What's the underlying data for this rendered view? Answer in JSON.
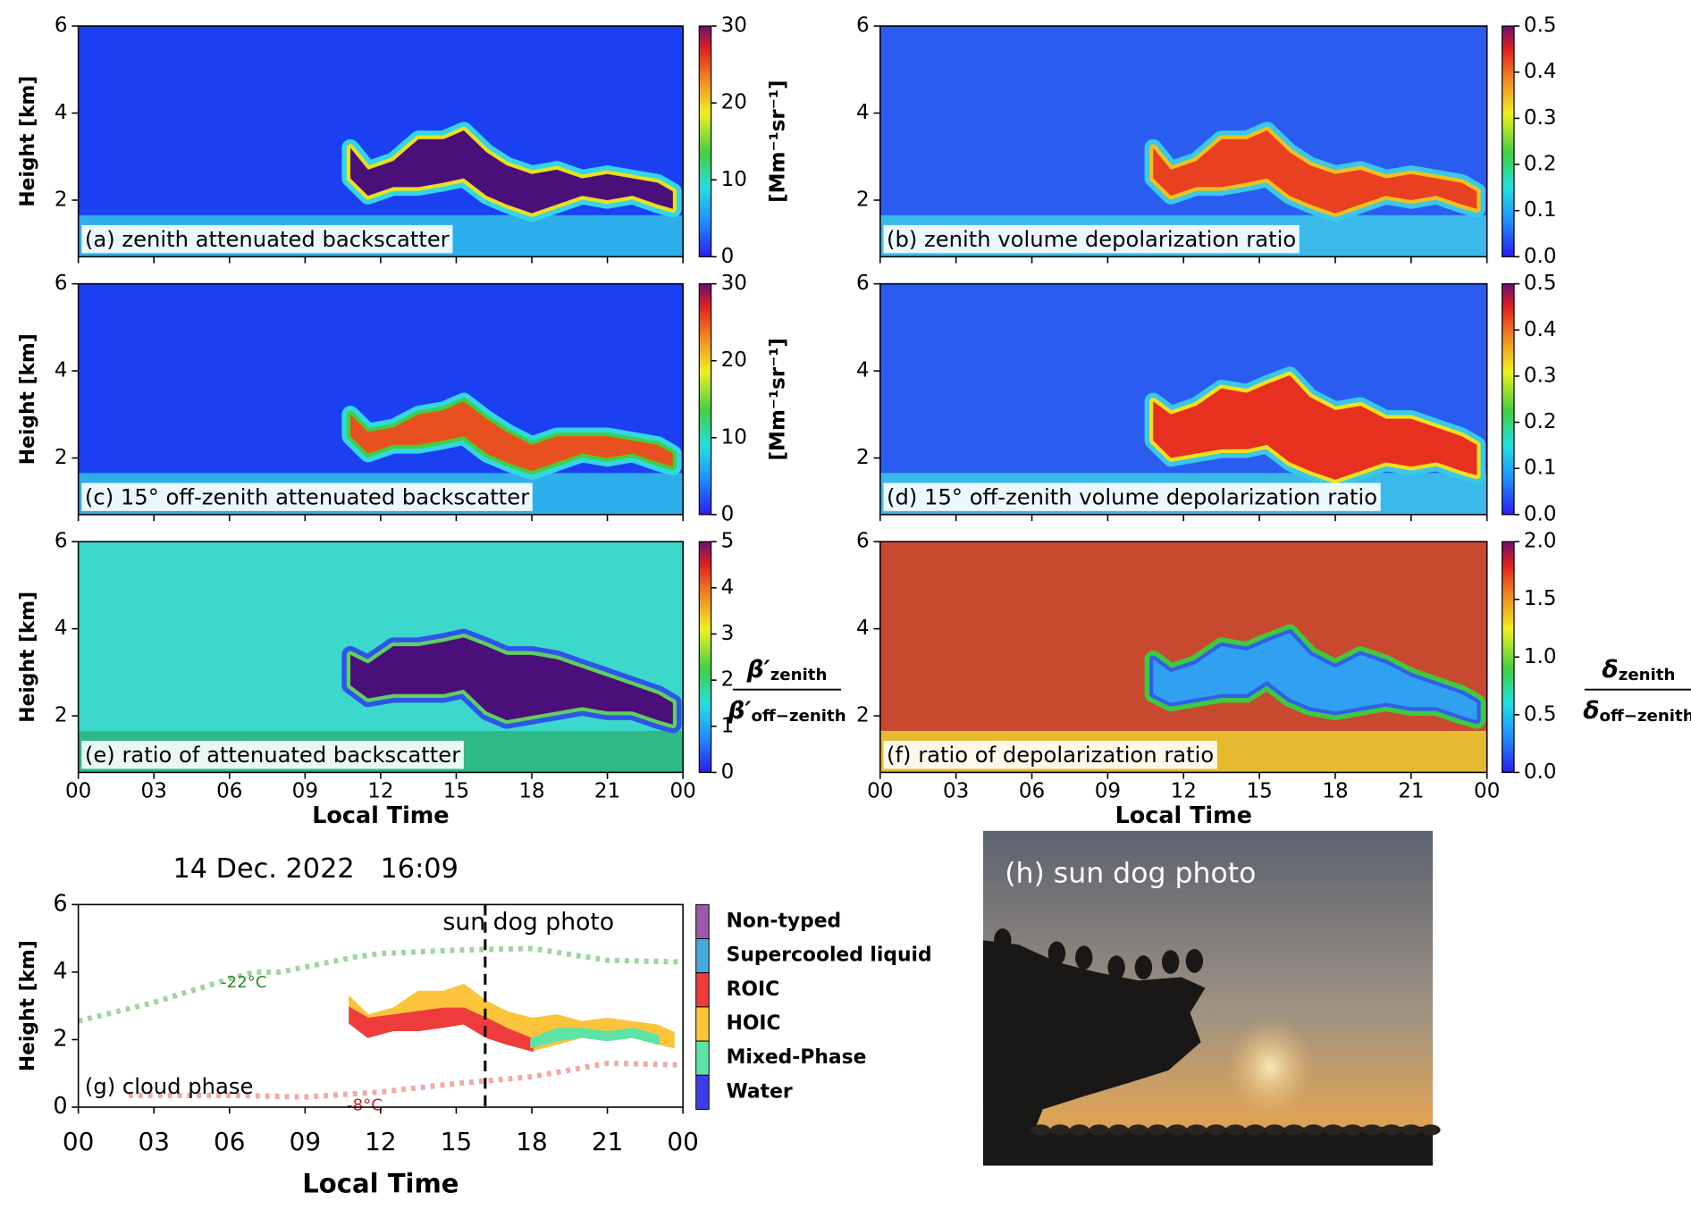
{
  "chart_data": [
    {
      "type": "heatmap",
      "label": "(a) zenith attenuated backscatter",
      "ylabel": "Height [km]",
      "xlim": [
        0,
        24
      ],
      "xticks": [
        0,
        3,
        6,
        9,
        12,
        15,
        18,
        21,
        24
      ],
      "ylim": [
        0.7,
        6
      ],
      "yticks": [
        2,
        4,
        6
      ],
      "background": "#1b40f2",
      "surface_color": "#36d4ea",
      "cloud_colors": [
        "#33d6e6",
        "#e8e020",
        "#4b0f7a"
      ],
      "cloud": {
        "x": [
          10.8,
          11.5,
          12.5,
          13.5,
          14.5,
          15.3,
          16.2,
          17,
          18,
          19,
          20,
          21,
          22,
          23,
          23.6
        ],
        "top": [
          3.2,
          2.7,
          2.9,
          3.4,
          3.4,
          3.6,
          3.1,
          2.8,
          2.6,
          2.7,
          2.5,
          2.6,
          2.5,
          2.4,
          2.2
        ],
        "base": [
          2.5,
          2.1,
          2.3,
          2.3,
          2.4,
          2.5,
          2.1,
          1.9,
          1.7,
          1.9,
          2.1,
          2.0,
          2.1,
          1.9,
          1.8
        ]
      },
      "colorbar": {
        "lim": [
          0,
          30
        ],
        "ticks": [
          0,
          10,
          20,
          30
        ],
        "label": "[Mm⁻¹sr⁻¹]"
      }
    },
    {
      "type": "heatmap",
      "label": "(b) zenith volume depolarization ratio",
      "xlim": [
        0,
        24
      ],
      "xticks": [
        0,
        3,
        6,
        9,
        12,
        15,
        18,
        21,
        24
      ],
      "ylim": [
        0.7,
        6
      ],
      "yticks": [
        2,
        4,
        6
      ],
      "background": "#2a5cf0",
      "surface_color": "#40d8e8",
      "cloud_colors": [
        "#39c8e8",
        "#f0c020",
        "#e84020"
      ],
      "cloud": {
        "x": [
          10.8,
          11.5,
          12.5,
          13.5,
          14.5,
          15.3,
          16.2,
          17,
          18,
          19,
          20,
          21,
          22,
          23,
          23.6
        ],
        "top": [
          3.2,
          2.7,
          2.9,
          3.4,
          3.4,
          3.6,
          3.1,
          2.8,
          2.6,
          2.7,
          2.5,
          2.6,
          2.5,
          2.4,
          2.2
        ],
        "base": [
          2.5,
          2.1,
          2.3,
          2.3,
          2.4,
          2.5,
          2.1,
          1.9,
          1.7,
          1.9,
          2.1,
          2.0,
          2.1,
          1.9,
          1.8
        ]
      },
      "colorbar": {
        "lim": [
          0,
          0.5
        ],
        "ticks": [
          {
            "value": 0,
            "label": "0.0"
          },
          0.1,
          0.2,
          0.3,
          0.4,
          0.5
        ]
      }
    },
    {
      "type": "heatmap",
      "label": "(c) 15° off-zenith attenuated backscatter",
      "ylabel": "Height [km]",
      "xlim": [
        0,
        24
      ],
      "xticks": [
        0,
        3,
        6,
        9,
        12,
        15,
        18,
        21,
        24
      ],
      "ylim": [
        0.7,
        6
      ],
      "yticks": [
        2,
        4,
        6
      ],
      "background": "#1b40f2",
      "surface_color": "#36d4ea",
      "cloud_colors": [
        "#33d6e6",
        "#40d040",
        "#e85020"
      ],
      "cloud": {
        "x": [
          10.8,
          11.5,
          12.5,
          13.5,
          14.5,
          15.3,
          16.2,
          17,
          18,
          19,
          20,
          21,
          22,
          23,
          23.6
        ],
        "top": [
          3.0,
          2.6,
          2.7,
          3.0,
          3.1,
          3.3,
          2.9,
          2.6,
          2.3,
          2.5,
          2.5,
          2.5,
          2.4,
          2.3,
          2.1
        ],
        "base": [
          2.5,
          2.1,
          2.3,
          2.3,
          2.4,
          2.5,
          2.1,
          1.9,
          1.7,
          1.9,
          2.1,
          2.0,
          2.1,
          1.9,
          1.8
        ]
      },
      "colorbar": {
        "lim": [
          0,
          30
        ],
        "ticks": [
          0,
          10,
          20,
          30
        ],
        "label": "[Mm⁻¹sr⁻¹]"
      }
    },
    {
      "type": "heatmap",
      "label": "(d) 15° off-zenith volume depolarization ratio",
      "xlim": [
        0,
        24
      ],
      "xticks": [
        0,
        3,
        6,
        9,
        12,
        15,
        18,
        21,
        24
      ],
      "ylim": [
        0.7,
        6
      ],
      "yticks": [
        2,
        4,
        6
      ],
      "background": "#2a5cf0",
      "surface_color": "#40d8e8",
      "cloud_colors": [
        "#39c8e8",
        "#f0e020",
        "#e83020"
      ],
      "cloud": {
        "x": [
          10.8,
          11.5,
          12.5,
          13.5,
          14.5,
          15.3,
          16.2,
          17,
          18,
          19,
          20,
          21,
          22,
          23,
          23.6
        ],
        "top": [
          3.3,
          3.0,
          3.2,
          3.6,
          3.5,
          3.7,
          3.9,
          3.4,
          3.1,
          3.2,
          2.9,
          2.9,
          2.7,
          2.5,
          2.3
        ],
        "base": [
          2.4,
          2.0,
          2.1,
          2.2,
          2.2,
          2.3,
          1.9,
          1.7,
          1.5,
          1.7,
          1.9,
          1.8,
          1.9,
          1.7,
          1.6
        ]
      },
      "colorbar": {
        "lim": [
          0,
          0.5
        ],
        "ticks": [
          {
            "value": 0,
            "label": "0.0"
          },
          0.1,
          0.2,
          0.3,
          0.4,
          0.5
        ]
      }
    },
    {
      "type": "heatmap",
      "label": "(e) ratio of attenuated backscatter",
      "ylabel": "Height [km]",
      "xlabel": "Local Time",
      "xlim": [
        0,
        24
      ],
      "xticks": [
        {
          "value": 0,
          "label": "00"
        },
        {
          "value": 3,
          "label": "03"
        },
        {
          "value": 6,
          "label": "06"
        },
        {
          "value": 9,
          "label": "09"
        },
        12,
        15,
        18,
        21,
        {
          "value": 24,
          "label": "00"
        }
      ],
      "ylim": [
        0.7,
        6
      ],
      "yticks": [
        2,
        4,
        6
      ],
      "background": "#3cd8cc",
      "surface_color": "#28b070",
      "cloud_colors": [
        "#2e54e8",
        "#60d060",
        "#4b0f7a"
      ],
      "cloud": {
        "x": [
          10.8,
          11.5,
          12.5,
          13.5,
          14.5,
          15.3,
          16.2,
          17,
          18,
          19,
          20,
          21,
          22,
          23,
          23.6
        ],
        "top": [
          3.4,
          3.2,
          3.6,
          3.6,
          3.7,
          3.8,
          3.6,
          3.4,
          3.4,
          3.3,
          3.1,
          2.9,
          2.7,
          2.5,
          2.3
        ],
        "base": [
          2.7,
          2.4,
          2.5,
          2.5,
          2.5,
          2.6,
          2.1,
          1.9,
          2.0,
          2.1,
          2.2,
          2.1,
          2.1,
          1.9,
          1.8
        ]
      },
      "colorbar": {
        "lim": [
          0,
          5
        ],
        "ticks": [
          0,
          1,
          2,
          3,
          4,
          5
        ],
        "label": {
          "numerator": {
            "symbol": "β′",
            "sub": "zenith"
          },
          "denominator": {
            "symbol": "β′",
            "sub": "off−zenith"
          }
        }
      }
    },
    {
      "type": "heatmap",
      "label": "(f) ratio of depolarization ratio",
      "xlabel": "Local Time",
      "xlim": [
        0,
        24
      ],
      "xticks": [
        {
          "value": 0,
          "label": "00"
        },
        {
          "value": 3,
          "label": "03"
        },
        {
          "value": 6,
          "label": "06"
        },
        {
          "value": 9,
          "label": "09"
        },
        12,
        15,
        18,
        21,
        {
          "value": 24,
          "label": "00"
        }
      ],
      "ylim": [
        0.7,
        6
      ],
      "yticks": [
        2,
        4,
        6
      ],
      "background": "#c84830",
      "surface_color": "#f0e030",
      "cloud_colors": [
        "#40c840",
        "#3060e8",
        "#30a0f0"
      ],
      "cloud": {
        "x": [
          10.8,
          11.5,
          12.5,
          13.5,
          14.5,
          15.3,
          16.2,
          17,
          18,
          19,
          20,
          21,
          22,
          23,
          23.6
        ],
        "top": [
          3.3,
          3.0,
          3.2,
          3.6,
          3.5,
          3.7,
          3.9,
          3.4,
          3.1,
          3.4,
          3.2,
          2.9,
          2.7,
          2.5,
          2.3
        ],
        "base": [
          2.5,
          2.3,
          2.4,
          2.5,
          2.5,
          2.8,
          2.4,
          2.2,
          2.1,
          2.2,
          2.3,
          2.2,
          2.2,
          2.0,
          1.9
        ]
      },
      "colorbar": {
        "lim": [
          0,
          2
        ],
        "ticks": [
          {
            "value": 0,
            "label": "0.0"
          },
          0.5,
          {
            "value": 1,
            "label": "1.0"
          },
          1.5,
          {
            "value": 2,
            "label": "2.0"
          }
        ],
        "label": {
          "numerator": {
            "symbol": "δ",
            "sub": "zenith"
          },
          "denominator": {
            "symbol": "δ",
            "sub": "off−zenith"
          }
        }
      }
    },
    {
      "type": "cloud_phase",
      "title": "14 Dec. 2022   16:09",
      "label": "(g) cloud phase",
      "ylabel": "Height [km]",
      "xlabel": "Local Time",
      "xlim": [
        0,
        24
      ],
      "xticks": [
        {
          "value": 0,
          "label": "00"
        },
        {
          "value": 3,
          "label": "03"
        },
        {
          "value": 6,
          "label": "06"
        },
        {
          "value": 9,
          "label": "09"
        },
        12,
        15,
        18,
        21,
        {
          "value": 24,
          "label": "00"
        }
      ],
      "ylim": [
        0,
        6
      ],
      "yticks": [
        0,
        2,
        4,
        6
      ],
      "marker": {
        "x": 16.15,
        "label": "sun dog photo"
      },
      "legend": [
        {
          "name": "Non-typed",
          "color": "#9b59a8"
        },
        {
          "name": "Supercooled liquid",
          "color": "#46a9dd"
        },
        {
          "name": "ROIC",
          "color": "#ee3b3b"
        },
        {
          "name": "HOIC",
          "color": "#fcc43a"
        },
        {
          "name": "Mixed-Phase",
          "color": "#5de3a5"
        },
        {
          "name": "Water",
          "color": "#3b3ee8"
        }
      ],
      "layers": [
        {
          "color": "#fcc43a",
          "x": [
            10.8,
            11.5,
            12.5,
            13.5,
            14.5,
            15.3,
            16.2,
            17,
            18,
            19,
            20,
            21,
            22,
            23,
            23.6
          ],
          "top": [
            3.2,
            2.7,
            2.9,
            3.4,
            3.4,
            3.6,
            3.1,
            2.8,
            2.6,
            2.7,
            2.5,
            2.6,
            2.5,
            2.4,
            2.2
          ],
          "base": [
            2.5,
            2.1,
            2.3,
            2.3,
            2.4,
            2.5,
            2.1,
            1.9,
            1.7,
            1.9,
            2.1,
            2.0,
            2.1,
            1.9,
            1.8
          ]
        },
        {
          "color": "#ee3b3b",
          "x": [
            10.8,
            11.5,
            12.5,
            13.5,
            14.5,
            15.3,
            16.2,
            17,
            18
          ],
          "top": [
            2.9,
            2.6,
            2.7,
            2.8,
            2.9,
            2.9,
            2.6,
            2.3,
            2.0
          ],
          "base": [
            2.5,
            2.1,
            2.3,
            2.3,
            2.4,
            2.5,
            2.1,
            1.9,
            1.7
          ]
        },
        {
          "color": "#5de3a5",
          "x": [
            18,
            19,
            20,
            21,
            22,
            23
          ],
          "top": [
            2.0,
            2.3,
            2.3,
            2.2,
            2.3,
            2.1
          ],
          "base": [
            1.8,
            2.0,
            2.1,
            2.0,
            2.1,
            1.9
          ]
        }
      ],
      "isotherms": [
        {
          "name": "-22°C",
          "color": "#9fd59f",
          "label_color": "#2a8a2a",
          "x": [
            0,
            3,
            6,
            7,
            8,
            9,
            10,
            11,
            12,
            15,
            18,
            21,
            24
          ],
          "values": [
            2.55,
            3.1,
            3.8,
            4.0,
            4.0,
            4.15,
            4.3,
            4.45,
            4.55,
            4.65,
            4.7,
            4.35,
            4.3
          ]
        },
        {
          "name": "-8°C",
          "color": "#f4a8a8",
          "label_color": "#d02020",
          "x": [
            2,
            6,
            9,
            12,
            15,
            18,
            21,
            24
          ],
          "values": [
            0.35,
            0.35,
            0.3,
            0.45,
            0.7,
            0.9,
            1.3,
            1.25
          ]
        }
      ]
    },
    {
      "type": "photo",
      "label": "(h) sun dog photo"
    }
  ]
}
